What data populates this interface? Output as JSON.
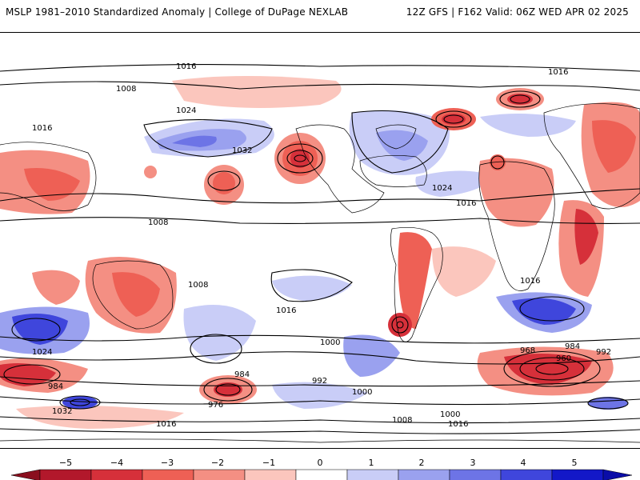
{
  "header": {
    "title": "MSLP 1981–2010 Standardized Anomaly | College of DuPage NEXLAB",
    "run_info": "12Z GFS | F162 Valid: 06Z WED APR 02 2025"
  },
  "colors": {
    "neg5": "#b2182b",
    "neg4": "#d6303a",
    "neg3": "#ee6055",
    "neg2": "#f48f83",
    "neg1": "#fbc6bd",
    "zero": "#ffffff",
    "pos1": "#c9cdf7",
    "pos2": "#9aa1ef",
    "pos3": "#6d74e6",
    "pos4": "#3f46dc",
    "pos5": "#1318c8",
    "contour": "#000000",
    "coast": "#000000"
  },
  "colorbar": {
    "ticks": [
      "−5",
      "−4",
      "−3",
      "−2",
      "−1",
      "0",
      "1",
      "2",
      "3",
      "4",
      "5"
    ]
  },
  "isobar_labels": [
    "1016",
    "1008",
    "1024",
    "1032",
    "1000",
    "992",
    "984",
    "976",
    "968",
    "960"
  ]
}
